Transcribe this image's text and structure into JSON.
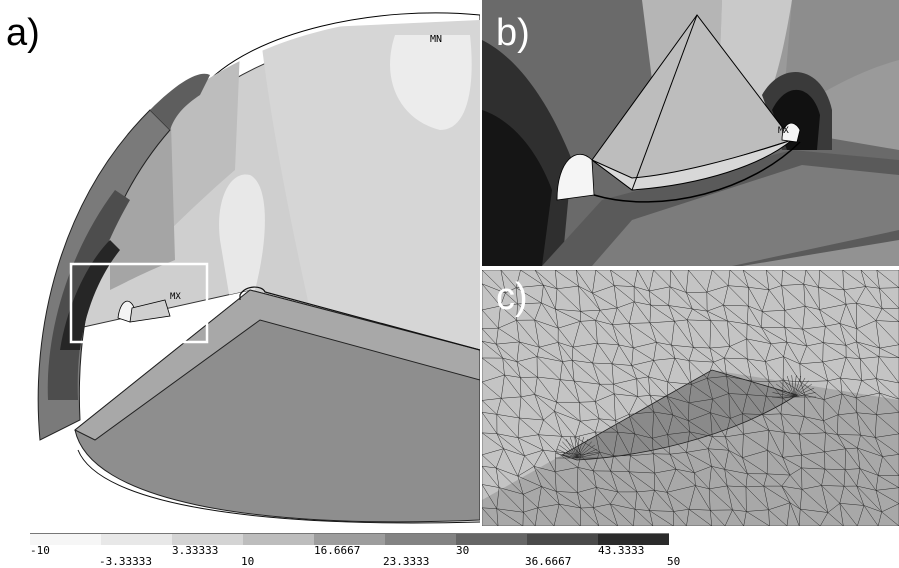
{
  "panels": {
    "a": {
      "label": "a)",
      "min_marker": "MN",
      "max_marker": "MX"
    },
    "b": {
      "label": "b)",
      "max_marker": "MX"
    },
    "c": {
      "label": "c)"
    }
  },
  "legend": {
    "ticks_upper": [
      "-10",
      "3.33333",
      "16.6667",
      "30",
      "43.3333"
    ],
    "ticks_lower": [
      "-3.33333",
      "10",
      "23.3333",
      "36.6667",
      "50"
    ],
    "colors": [
      "#f6f6f6",
      "#e8e8e8",
      "#d4d4d4",
      "#bdbdbd",
      "#9d9d9d",
      "#838383",
      "#666666",
      "#4a4a4a",
      "#2b2b2b"
    ]
  }
}
